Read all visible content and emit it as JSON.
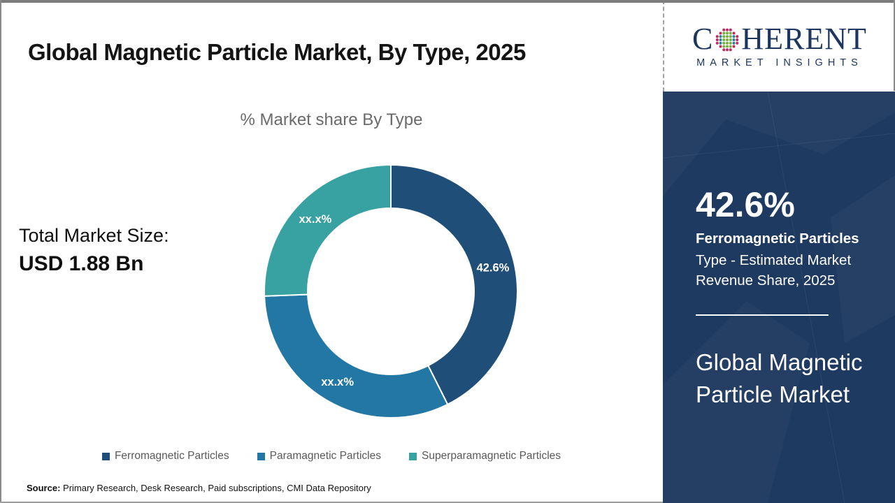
{
  "page": {
    "title": "Global Magnetic Particle Market, By Type, 2025",
    "source_label": "Source:",
    "source_text": " Primary Research, Desk Research, Paid subscriptions, CMI Data Repository"
  },
  "logo": {
    "word_start": "C",
    "word_end": "HERENT",
    "subtitle": "MARKET INSIGHTS",
    "brand_color": "#1d3660",
    "globe_colors": {
      "outer": "#c22a60",
      "mid": "#2d7f9d",
      "inner": "#74b044"
    }
  },
  "stats": {
    "total_label": "Total Market Size:",
    "total_value": "USD 1.88 Bn"
  },
  "sidebar": {
    "highlight_value": "42.6%",
    "highlight_title": "Ferromagnetic Particles",
    "highlight_desc": "Type - Estimated Market Revenue Share, 2025",
    "footer_title": "Global Magnetic Particle Market",
    "bg_color": "#1f3a60"
  },
  "chart_data": {
    "type": "pie",
    "donut": true,
    "title": "% Market share By Type",
    "categories": [
      "Ferromagnetic Particles",
      "Paramagnetic Particles",
      "Superparamagnetic Particles"
    ],
    "values": [
      42.6,
      31.8,
      25.6
    ],
    "labels": [
      "42.6%",
      "xx.x%",
      "xx.x%"
    ],
    "colors": [
      "#1F4E79",
      "#2277A4",
      "#38A1A1"
    ],
    "start_angle_deg": 0,
    "direction": "clockwise",
    "legend_position": "bottom"
  }
}
